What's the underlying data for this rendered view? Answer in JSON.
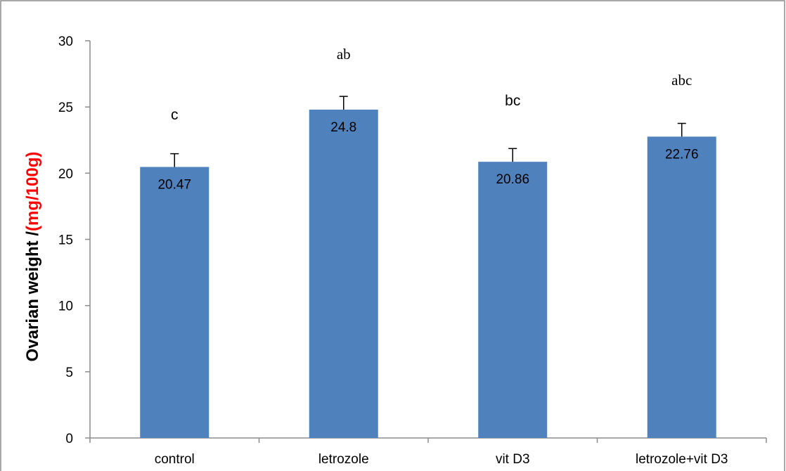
{
  "chart_data": {
    "type": "bar",
    "categories": [
      "control",
      "letrozole",
      "vit D3",
      "letrozole+vit D3"
    ],
    "values": [
      20.47,
      24.8,
      20.86,
      22.76
    ],
    "value_labels": [
      "20.47",
      "24.8",
      "20.86",
      "22.76"
    ],
    "error": [
      1.0,
      1.0,
      1.0,
      1.0
    ],
    "significance_letters": [
      "c",
      "ab",
      "bc",
      "abc"
    ],
    "ylabel_main": "Ovarian weight /",
    "ylabel_unit": "(mg/100g)",
    "ylim": [
      0,
      30
    ],
    "yticks": [
      0,
      5,
      10,
      15,
      20,
      25,
      30
    ],
    "bar_color": "#4f81bd",
    "unit_color": "#ff0000",
    "grid": false,
    "legend": "none"
  }
}
